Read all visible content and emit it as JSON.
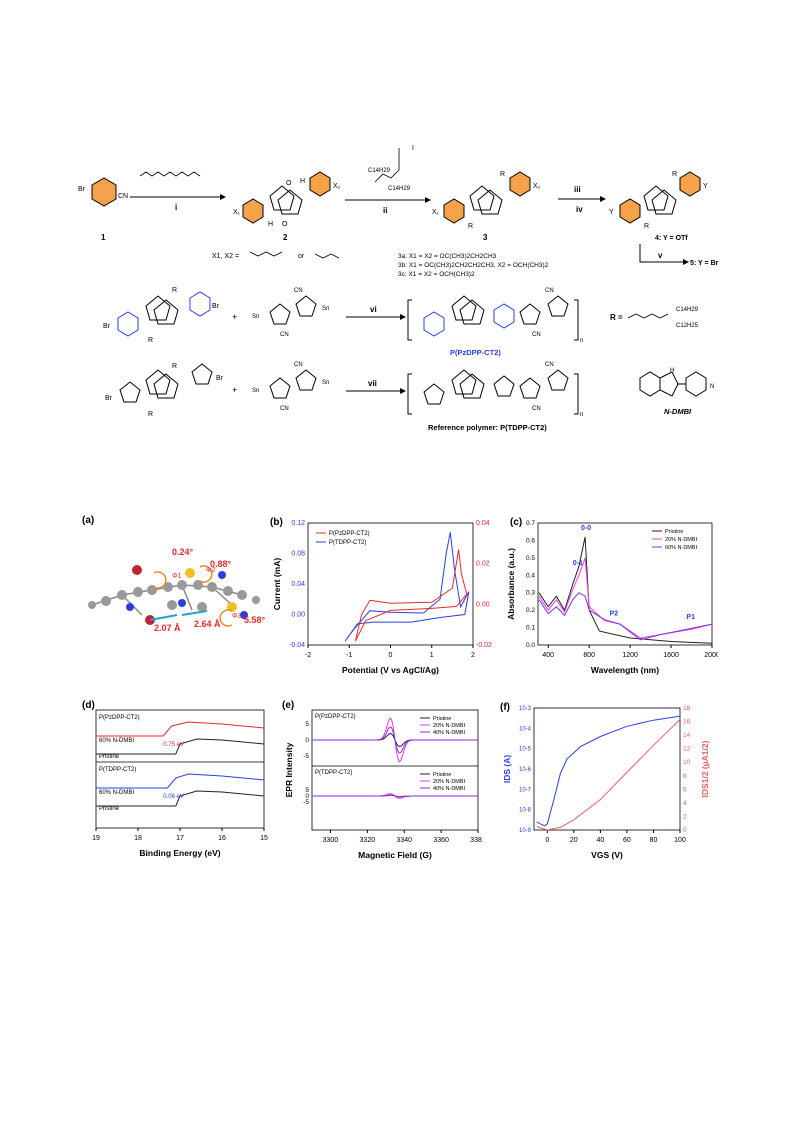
{
  "scheme": {
    "compound_1": "1",
    "compound_2": "2",
    "compound_3": "3",
    "step_i": "i",
    "step_ii": "ii",
    "step_iii": "iii",
    "step_iv": "iv",
    "step_v": "v",
    "step_vi": "vi",
    "step_vii": "vii",
    "x_def": "X1, X2 =",
    "x_or": "or",
    "line_3a": "3a: X1 = X2 = OC(CH3)2CH2CH3",
    "line_3b": "3b: X1 = OC(CH3)2CH2CH2CH3, X2 = OCH(CH3)2",
    "line_3c": "3c: X1 = X2 = OCH(CH3)2",
    "line_4": "4: Y = OTf",
    "line_5": "5: Y = Br",
    "polymer_1": "P(PzDPP-CT2)",
    "polymer_2": "Reference polymer: P(TDPP-CT2)",
    "r_label": "R =",
    "dopant": "N-DMBI",
    "c14h29": "C14H29",
    "c12h25": "C12H25"
  },
  "panel_a": {
    "label": "(a)",
    "angle1": "0.24°",
    "angle2": "0.88°",
    "angle3": "5.58°",
    "phi1": "Φ1",
    "phi2": "Φ2",
    "phi3": "Φ3",
    "dist1": "2.07 Å",
    "dist2": "2.64 Å"
  },
  "chart_data": [
    {
      "panel": "(b)",
      "type": "line",
      "xlabel": "Potential (V vs AgCl/Ag)",
      "ylabel": "Current (mA)",
      "xlim": [
        -2,
        2
      ],
      "ylim_left": [
        -0.04,
        0.12
      ],
      "ylim_right": [
        -0.02,
        0.04
      ],
      "xticks": [
        "-2",
        "-1",
        "0",
        "1",
        "2"
      ],
      "yticks_left": [
        "0.12",
        "0.08",
        "0.04",
        "0.00",
        "-0.04"
      ],
      "yticks_right": [
        "0.04",
        "0.02",
        "0.00",
        "-0.02"
      ],
      "series": [
        {
          "name": "P(PzDPP-CT2)",
          "color": "#e8282b",
          "axis": "right"
        },
        {
          "name": "P(TDPP-CT2)",
          "color": "#2a3fe0",
          "axis": "left"
        }
      ]
    },
    {
      "panel": "(c)",
      "type": "line",
      "xlabel": "Wavelength (nm)",
      "ylabel": "Absorbance (a.u.)",
      "xlim": [
        300,
        2000
      ],
      "ylim": [
        0,
        0.7
      ],
      "xticks": [
        "400",
        "800",
        "1200",
        "1600",
        "2000"
      ],
      "yticks": [
        "0.0",
        "0.1",
        "0.2",
        "0.3",
        "0.4",
        "0.5",
        "0.6",
        "0.7"
      ],
      "annotations": [
        "0-0",
        "0-1",
        "P2",
        "P1"
      ],
      "series": [
        {
          "name": "Pristine",
          "color": "#222222"
        },
        {
          "name": "20% N-DMBI",
          "color": "#e040e0"
        },
        {
          "name": "60% N-DMBI",
          "color": "#8a2be2"
        }
      ]
    },
    {
      "panel": "(d)",
      "type": "line",
      "xlabel": "Binding Energy (eV)",
      "xlim": [
        19,
        15
      ],
      "xticks": [
        "19",
        "18",
        "17",
        "16",
        "15"
      ],
      "subplots": [
        {
          "title": "P(PzDPP-CT2)",
          "shift": "0.75 eV",
          "series": [
            {
              "name": "60% N-DMBI",
              "color": "#e8282b"
            },
            {
              "name": "Pristine",
              "color": "#222222"
            }
          ]
        },
        {
          "title": "P(TDPP-CT2)",
          "shift": "0.06 eV",
          "series": [
            {
              "name": "60% N-DMBI",
              "color": "#2a3fe0"
            },
            {
              "name": "Pristine",
              "color": "#222222"
            }
          ]
        }
      ]
    },
    {
      "panel": "(e)",
      "type": "line",
      "xlabel": "Magnetic Field (G)",
      "ylabel": "EPR Intensity",
      "xlim": [
        3290,
        3380
      ],
      "xticks": [
        "3300",
        "3320",
        "3340",
        "3360",
        "3380"
      ],
      "yticks": [
        "5",
        "0",
        "-5"
      ],
      "subplots": [
        {
          "title": "P(PzDPP-CT2)",
          "series": [
            {
              "name": "Pristine",
              "color": "#222222"
            },
            {
              "name": "20% N-DMBI",
              "color": "#e040e0"
            },
            {
              "name": "40% N-DMBI",
              "color": "#8a2be2"
            }
          ]
        },
        {
          "title": "P(TDPP-CT2)",
          "series": [
            {
              "name": "Pristine",
              "color": "#222222"
            },
            {
              "name": "20% N-DMBI",
              "color": "#e040e0"
            },
            {
              "name": "40% N-DMBI",
              "color": "#8a2be2"
            }
          ]
        }
      ]
    },
    {
      "panel": "(f)",
      "type": "line",
      "xlabel": "VGS (V)",
      "ylabel_left": "IDS (A)",
      "ylabel_right": "IDS1/2 (µA1/2)",
      "xlim": [
        -10,
        100
      ],
      "xticks": [
        "0",
        "20",
        "40",
        "60",
        "80",
        "100"
      ],
      "yticks_left": [
        "10-3",
        "10-4",
        "10-5",
        "10-6",
        "10-7",
        "10-8",
        "10-9"
      ],
      "yticks_right": [
        "18",
        "16",
        "14",
        "12",
        "10",
        "8",
        "6",
        "4",
        "2",
        "0"
      ],
      "series": [
        {
          "name": "IDS",
          "color": "#2a3fe0",
          "axis": "left"
        },
        {
          "name": "IDS1/2",
          "color": "#e86060",
          "axis": "right"
        }
      ]
    }
  ]
}
